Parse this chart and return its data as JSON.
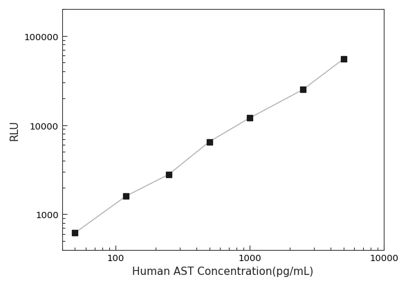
{
  "x_values": [
    50,
    120,
    250,
    500,
    1000,
    2500,
    5000
  ],
  "y_values": [
    620,
    1600,
    2800,
    6500,
    12000,
    25000,
    55000
  ],
  "x_label": "Human AST Concentration(pg/mL)",
  "y_label": "RLU",
  "marker": "s",
  "marker_color": "#1a1a1a",
  "marker_size": 6,
  "line_color": "#b0b0b0",
  "line_style": "-",
  "line_width": 1.0,
  "x_lim": [
    40,
    10000
  ],
  "y_lim": [
    400,
    200000
  ],
  "x_ticks": [
    100,
    1000,
    10000
  ],
  "y_ticks": [
    1000,
    10000,
    100000
  ],
  "background_color": "#ffffff",
  "spine_color": "#333333",
  "tick_color": "#333333",
  "label_fontsize": 11,
  "tick_fontsize": 9.5
}
